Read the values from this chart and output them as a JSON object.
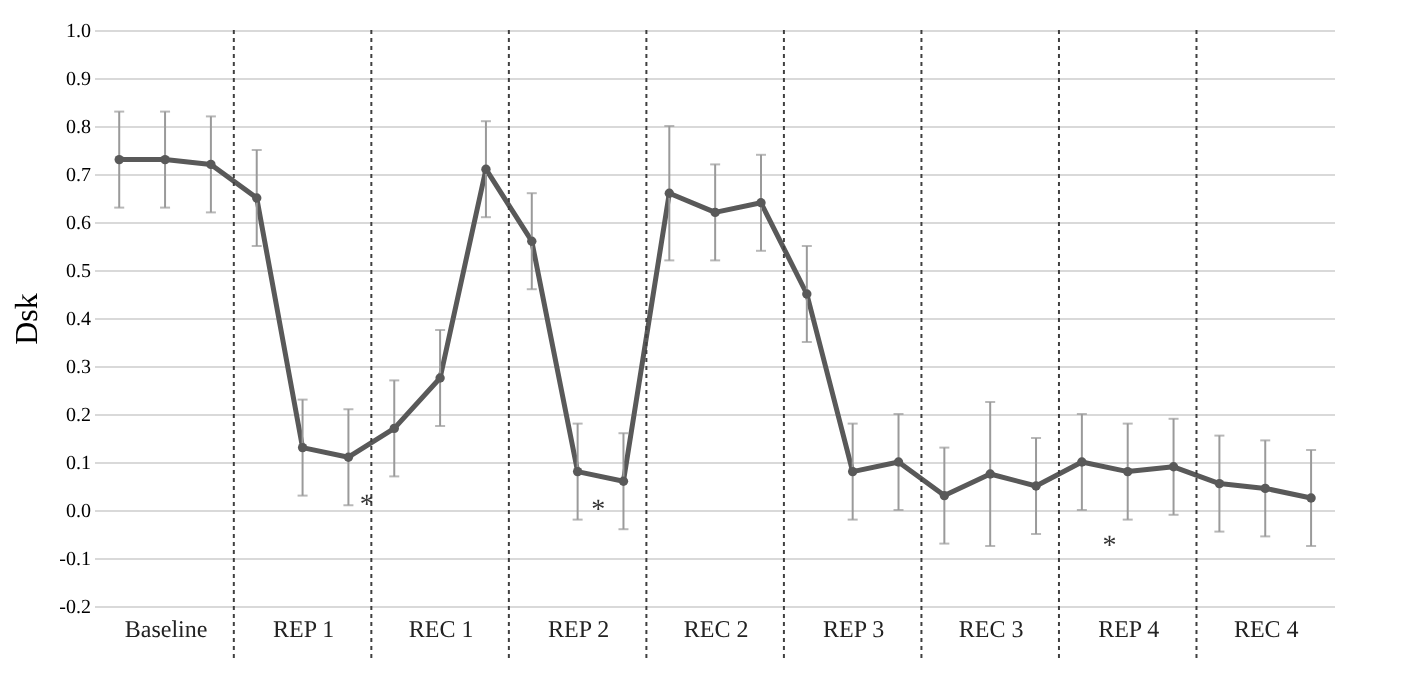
{
  "chart_data": {
    "type": "line",
    "ylabel": "Dsk",
    "categories": [
      null,
      "Baseline",
      null,
      null,
      "REP 1",
      null,
      null,
      "REC 1",
      null,
      null,
      "REP 2",
      null,
      null,
      "REC 2",
      null,
      null,
      "REP 3",
      null,
      null,
      "REC 3",
      null,
      null,
      "REP 4",
      null,
      null,
      "REC 4",
      null
    ],
    "ylim": [
      -0.2,
      1.0
    ],
    "yticks": [
      {
        "value": -0.2,
        "label": "-0.2"
      },
      {
        "value": -0.1,
        "label": "-0.1"
      },
      {
        "value": 0,
        "label": "0.0"
      },
      {
        "value": 0.1,
        "label": "0.1"
      },
      {
        "value": 0.2,
        "label": "0.2"
      },
      {
        "value": 0.3,
        "label": "0.3"
      },
      {
        "value": 0.4,
        "label": "0.4"
      },
      {
        "value": 0.5,
        "label": "0.5"
      },
      {
        "value": 0.6,
        "label": "0.6"
      },
      {
        "value": 0.7,
        "label": "0.7"
      },
      {
        "value": 0.8,
        "label": "0.8"
      },
      {
        "value": 0.9,
        "label": "0.9"
      },
      {
        "value": 1.0,
        "label": "1.0"
      }
    ],
    "grid": "y",
    "marker": "circle",
    "line_style": "solid",
    "series": [
      {
        "color": "#595959",
        "values": [
          0.73,
          0.73,
          0.72,
          0.65,
          0.13,
          0.11,
          0.17,
          0.275,
          0.71,
          0.56,
          0.08,
          0.06,
          0.66,
          0.62,
          0.64,
          0.45,
          0.08,
          0.1,
          0.03,
          0.075,
          0.05,
          0.1,
          0.08,
          0.09,
          0.055,
          0.045,
          0.025
        ],
        "errors": [
          0.1,
          0.1,
          0.1,
          0.1,
          0.1,
          0.1,
          0.1,
          0.1,
          0.1,
          0.1,
          0.1,
          0.1,
          0.14,
          0.1,
          0.1,
          0.1,
          0.1,
          0.1,
          0.1,
          0.15,
          0.1,
          0.1,
          0.1,
          0.1,
          0.1,
          0.1,
          0.1
        ]
      }
    ],
    "annotations": [
      "*",
      "*",
      "*"
    ]
  }
}
